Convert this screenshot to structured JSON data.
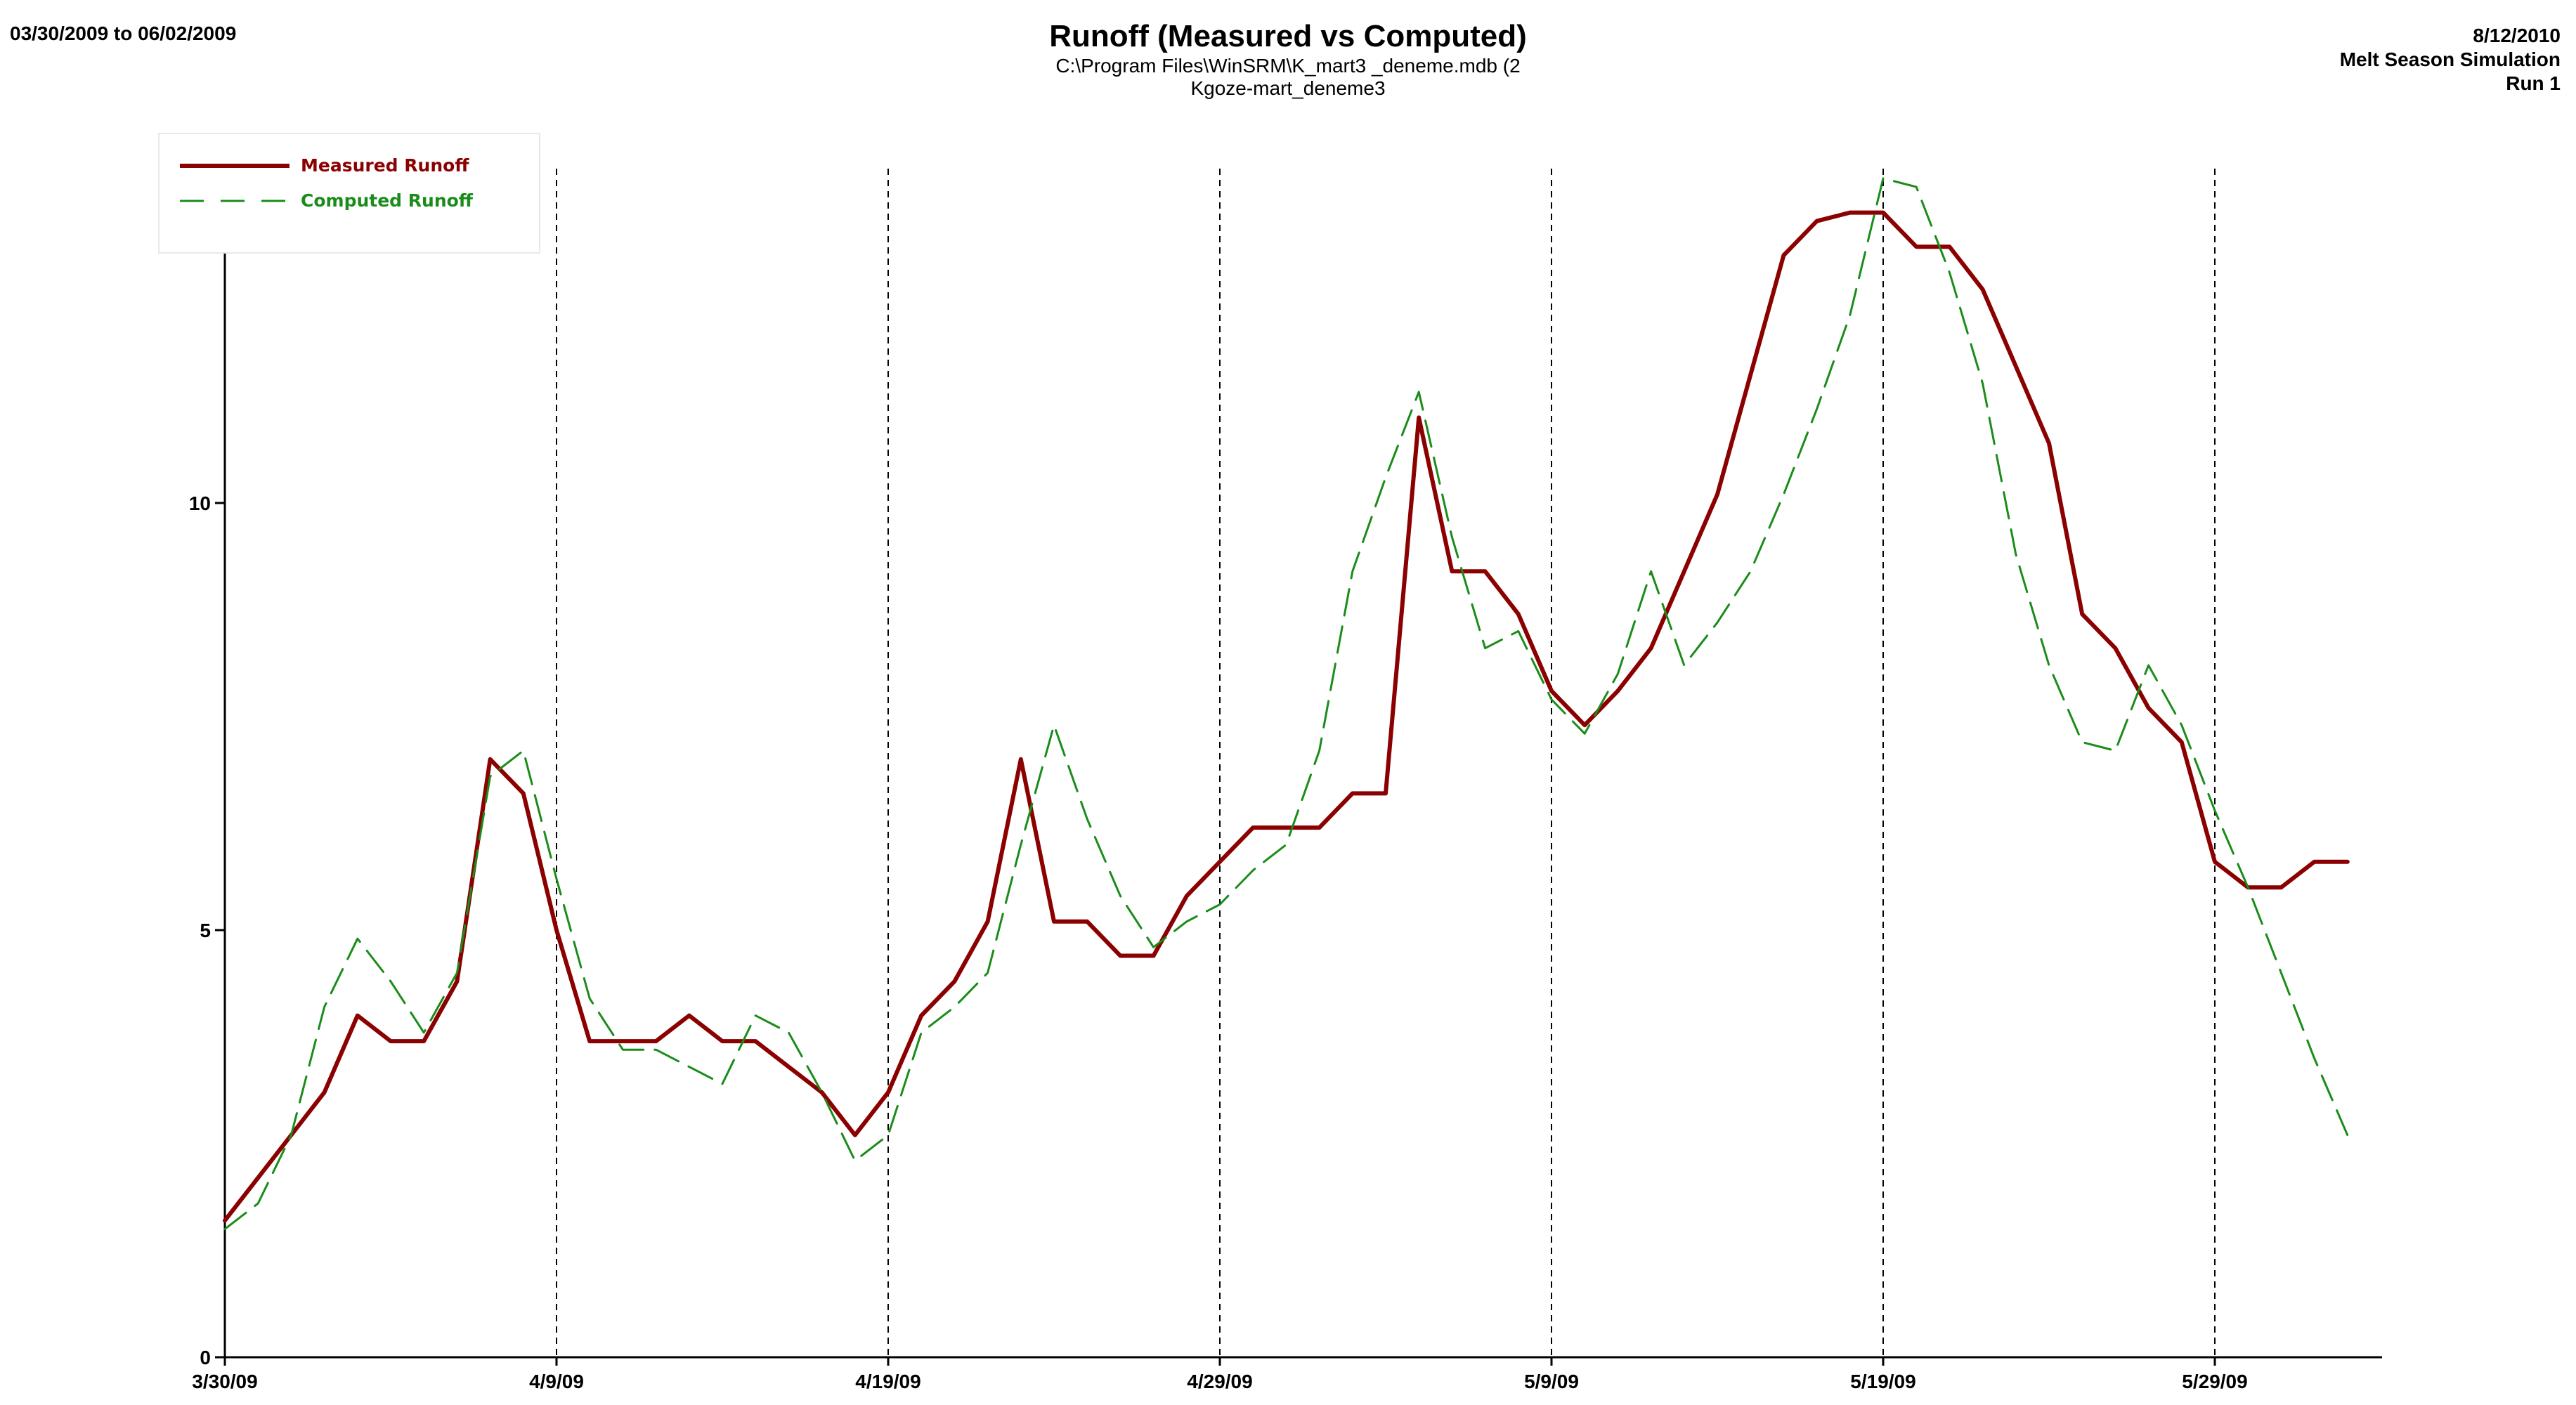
{
  "header": {
    "date_range": "03/30/2009 to 06/02/2009",
    "title": "Runoff (Measured vs Computed)",
    "subtitle1": "C:\\Program Files\\WinSRM\\K_mart3 _deneme.mdb (2",
    "subtitle2": "Kgoze-mart_deneme3",
    "date": "8/12/2010",
    "simulation": "Melt Season Simulation",
    "run": "Run 1"
  },
  "chart_data": {
    "type": "line",
    "x": [
      "3/30/09",
      "3/31/09",
      "4/1/09",
      "4/2/09",
      "4/3/09",
      "4/4/09",
      "4/5/09",
      "4/6/09",
      "4/7/09",
      "4/8/09",
      "4/9/09",
      "4/10/09",
      "4/11/09",
      "4/12/09",
      "4/13/09",
      "4/14/09",
      "4/15/09",
      "4/16/09",
      "4/17/09",
      "4/18/09",
      "4/19/09",
      "4/20/09",
      "4/21/09",
      "4/22/09",
      "4/23/09",
      "4/24/09",
      "4/25/09",
      "4/26/09",
      "4/27/09",
      "4/28/09",
      "4/29/09",
      "4/30/09",
      "5/1/09",
      "5/2/09",
      "5/3/09",
      "5/4/09",
      "5/5/09",
      "5/6/09",
      "5/7/09",
      "5/8/09",
      "5/9/09",
      "5/10/09",
      "5/11/09",
      "5/12/09",
      "5/13/09",
      "5/14/09",
      "5/15/09",
      "5/16/09",
      "5/17/09",
      "5/18/09",
      "5/19/09",
      "5/20/09",
      "5/21/09",
      "5/22/09",
      "5/23/09",
      "5/24/09",
      "5/25/09",
      "5/26/09",
      "5/27/09",
      "5/28/09",
      "5/29/09",
      "5/30/09",
      "5/31/09",
      "6/1/09",
      "6/2/09"
    ],
    "x_ticks": [
      "3/30/09",
      "4/9/09",
      "4/19/09",
      "4/29/09",
      "5/9/09",
      "5/19/09",
      "5/29/09"
    ],
    "y_ticks": [
      0,
      5,
      10
    ],
    "ylim": [
      0,
      14
    ],
    "grid": "vertical dashed lines at date ticks",
    "legend_position": "top-left",
    "series": [
      {
        "name": "Measured Runoff",
        "color": "#8b0000",
        "style": "solid",
        "values": [
          1.6,
          2.1,
          2.6,
          3.1,
          4.0,
          3.7,
          3.7,
          4.4,
          7.0,
          6.6,
          5.0,
          3.7,
          3.7,
          3.7,
          4.0,
          3.7,
          3.7,
          3.4,
          3.1,
          2.6,
          3.1,
          4.0,
          4.4,
          5.1,
          7.0,
          5.1,
          5.1,
          4.7,
          4.7,
          5.4,
          5.8,
          6.2,
          6.2,
          6.2,
          6.6,
          6.6,
          11.0,
          9.2,
          9.2,
          8.7,
          7.8,
          7.4,
          7.8,
          8.3,
          9.2,
          10.1,
          11.5,
          12.9,
          13.3,
          13.4,
          13.4,
          13.0,
          13.0,
          12.5,
          11.6,
          10.7,
          8.7,
          8.3,
          7.6,
          7.2,
          5.8,
          5.5,
          5.5,
          5.8,
          5.8
        ]
      },
      {
        "name": "Computed Runoff",
        "color": "#1a8c1a",
        "style": "dashed",
        "values": [
          1.5,
          1.8,
          2.6,
          4.1,
          4.9,
          4.4,
          3.8,
          4.5,
          6.8,
          7.1,
          5.6,
          4.2,
          3.6,
          3.6,
          3.4,
          3.2,
          4.0,
          3.8,
          3.1,
          2.3,
          2.6,
          3.8,
          4.1,
          4.5,
          6.0,
          7.4,
          6.3,
          5.4,
          4.8,
          5.1,
          5.3,
          5.7,
          6.0,
          7.1,
          9.2,
          10.3,
          11.3,
          9.6,
          8.3,
          8.5,
          7.7,
          7.3,
          8.0,
          9.2,
          8.1,
          8.6,
          9.2,
          10.1,
          11.1,
          12.2,
          13.8,
          13.7,
          12.7,
          11.4,
          9.4,
          8.1,
          7.2,
          7.1,
          8.1,
          7.4,
          6.4,
          5.5,
          4.5,
          3.5,
          2.6
        ]
      }
    ]
  }
}
